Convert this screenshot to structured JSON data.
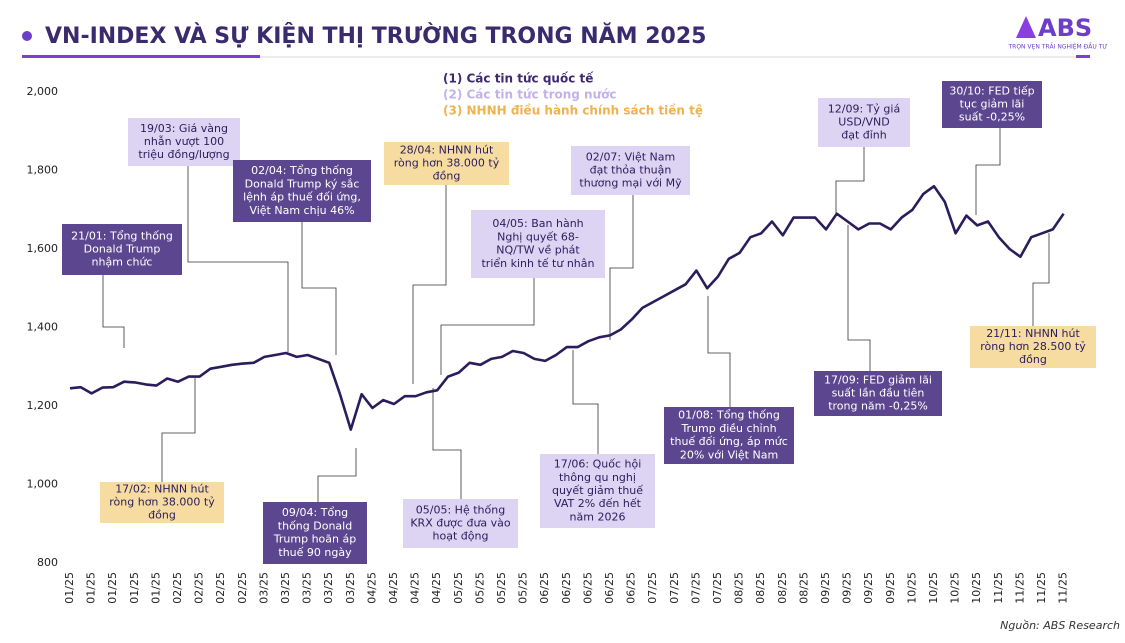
{
  "logo": {
    "name": "ABS",
    "tagline": "TRỌN VẸN TRẢI NGHIỆM ĐẦU TƯ"
  },
  "chart_data": {
    "type": "line",
    "title": "VN-INDEX VÀ SỰ KIỆN THỊ TRƯỜNG TRONG NĂM 2025",
    "source": "Nguồn: ABS Research",
    "categories": [
      "01/25",
      null,
      "01/25",
      null,
      "01/25",
      null,
      "01/25",
      null,
      "01/25",
      null,
      "02/25",
      null,
      "02/25",
      null,
      "02/25",
      null,
      "02/25",
      null,
      "03/25",
      null,
      "03/25",
      null,
      "03/25",
      null,
      "03/25",
      null,
      "03/25",
      null,
      "04/25",
      null,
      "04/25",
      null,
      "04/25",
      null,
      "04/25",
      null,
      "05/25",
      null,
      "05/25",
      null,
      "05/25",
      null,
      "05/25",
      null,
      "06/25",
      null,
      "06/25",
      null,
      "06/25",
      null,
      "06/25",
      null,
      "06/25",
      null,
      "07/25",
      null,
      "07/25",
      null,
      "07/25",
      null,
      "07/25",
      null,
      "08/25",
      null,
      "08/25",
      null,
      "08/25",
      null,
      "08/25",
      null,
      "09/25",
      null,
      "09/25",
      null,
      "09/25",
      null,
      "09/25",
      null,
      "10/25",
      null,
      "10/25",
      null,
      "10/25",
      null,
      "10/25",
      null,
      "11/25",
      null,
      "11/25",
      null,
      "11/25",
      null,
      "11/25"
    ],
    "series": [
      {
        "name": "VN-INDEX",
        "color": "#2b1d5c",
        "values": [
          1245,
          1248,
          1232,
          1247,
          1248,
          1262,
          1260,
          1255,
          1252,
          1270,
          1262,
          1275,
          1275,
          1295,
          1300,
          1305,
          1308,
          1310,
          1325,
          1330,
          1335,
          1325,
          1330,
          1320,
          1310,
          1230,
          1140,
          1230,
          1195,
          1215,
          1205,
          1225,
          1225,
          1235,
          1240,
          1275,
          1285,
          1310,
          1305,
          1320,
          1325,
          1340,
          1335,
          1320,
          1315,
          1330,
          1350,
          1350,
          1365,
          1375,
          1380,
          1395,
          1420,
          1450,
          1465,
          1480,
          1495,
          1510,
          1545,
          1500,
          1530,
          1575,
          1590,
          1630,
          1640,
          1670,
          1635,
          1680,
          1680,
          1680,
          1650,
          1690,
          1670,
          1650,
          1665,
          1665,
          1650,
          1680,
          1700,
          1740,
          1760,
          1720,
          1640,
          1685,
          1660,
          1670,
          1630,
          1600,
          1580,
          1630,
          1640,
          1650,
          1690
        ]
      }
    ],
    "ylim": [
      800,
      2000
    ],
    "yticks": [
      800,
      {
        "value": 1000,
        "label": "1,000"
      },
      {
        "value": 1200,
        "label": "1,200"
      },
      {
        "value": 1400,
        "label": "1,400"
      },
      {
        "value": 1600,
        "label": "1,600"
      },
      {
        "value": 1800,
        "label": "1,800"
      },
      {
        "value": 2000,
        "label": "2,000"
      }
    ],
    "legend": [
      {
        "label": "(1)  Các tin tức quốc tế",
        "color": "#3d2a70"
      },
      {
        "label": "(2)  Các tin tức trong nước",
        "color": "#c3b2e8"
      },
      {
        "label": "(3)  NHNH điều hành chính sách tiền tệ",
        "color": "#efb24f"
      }
    ],
    "annotations": [
      {
        "lines": [
          "21/01: Tổng thống",
          "Donald Trump",
          "nhậm chức"
        ],
        "color": "#5d4690",
        "text_color": "#ffffff"
      },
      {
        "lines": [
          "19/03: Giá vàng",
          "nhẫn vượt 100",
          "triệu đồng/lượng"
        ],
        "color": "#ddd3f3",
        "text_color": "#2b1d5c"
      },
      {
        "lines": [
          "02/04: Tổng thống",
          "Donald Trump ký sắc",
          "lệnh áp thuế đối ứng,",
          "Việt Nam chịu 46%"
        ],
        "color": "#5d4690",
        "text_color": "#ffffff"
      },
      {
        "lines": [
          "28/04: NHNN hút",
          "ròng hơn 38.000 tỷ",
          "đồng"
        ],
        "color": "#f7dca2",
        "text_color": "#2b1d5c"
      },
      {
        "lines": [
          "04/05: Ban hành",
          "Nghị quyết 68-",
          "NQ/TW về phát",
          "triển kinh tế tư nhân"
        ],
        "color": "#ddd3f3",
        "text_color": "#2b1d5c"
      },
      {
        "lines": [
          "02/07: Việt Nam",
          "đạt thỏa thuận",
          "thương mại với Mỹ"
        ],
        "color": "#ddd3f3",
        "text_color": "#2b1d5c"
      },
      {
        "lines": [
          "12/09: Tỷ giá",
          "USD/VND",
          "đạt đỉnh"
        ],
        "color": "#ddd3f3",
        "text_color": "#2b1d5c"
      },
      {
        "lines": [
          "30/10: FED tiếp",
          "tục giảm lãi",
          "suất -0,25%"
        ],
        "color": "#5d4690",
        "text_color": "#ffffff"
      },
      {
        "lines": [
          "17/02: NHNN hút",
          "ròng hơn 38.000 tỷ",
          "đồng"
        ],
        "color": "#f7dca2",
        "text_color": "#2b1d5c"
      },
      {
        "lines": [
          "09/04: Tổng",
          "thống Donald",
          "Trump hoãn áp",
          "thuế 90 ngày"
        ],
        "color": "#5d4690",
        "text_color": "#ffffff"
      },
      {
        "lines": [
          "05/05: Hệ thống",
          "KRX được đưa vào",
          "hoạt động"
        ],
        "color": "#ddd3f3",
        "text_color": "#2b1d5c"
      },
      {
        "lines": [
          "17/06: Quốc hội",
          "thông qu nghị",
          "quyết giảm thuế",
          "VAT 2% đến hết",
          "năm 2026"
        ],
        "color": "#ddd3f3",
        "text_color": "#2b1d5c"
      },
      {
        "lines": [
          "01/08: Tổng thống",
          "Trump điều chỉnh",
          "thuế đối ứng, áp mức",
          "20% với Việt Nam"
        ],
        "color": "#5d4690",
        "text_color": "#ffffff"
      },
      {
        "lines": [
          "17/09: FED giảm lãi",
          "suất lần đầu tiên",
          "trong năm -0,25%"
        ],
        "color": "#5d4690",
        "text_color": "#ffffff"
      },
      {
        "lines": [
          "21/11: NHNN hút",
          "ròng hơn 28.500 tỷ",
          "đồng"
        ],
        "color": "#f7dca2",
        "text_color": "#2b1d5c"
      }
    ]
  }
}
